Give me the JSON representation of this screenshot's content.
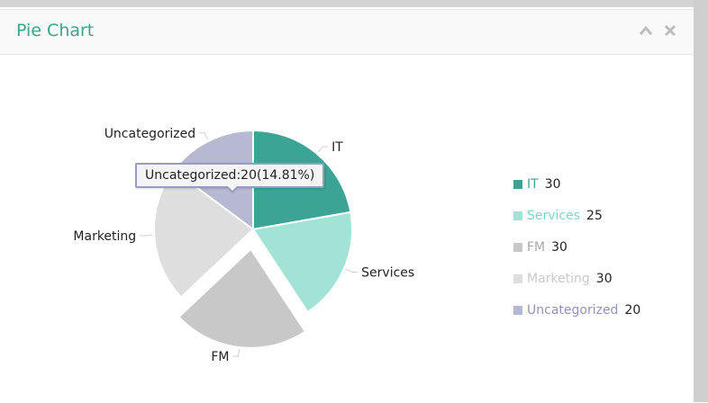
{
  "panel": {
    "title": "Pie Chart"
  },
  "header_icons": {
    "collapse": "chevron-up-icon",
    "close": "close-icon"
  },
  "tooltip": {
    "text": "Uncategorized:20(14.81%)"
  },
  "colors": {
    "IT": "#3ba494",
    "Services": "#a3e3d6",
    "FM": "#c8c8c8",
    "Marketing": "#dedede",
    "Uncategorized": "#b7b9d3"
  },
  "chart_data": {
    "type": "pie",
    "title": "Pie Chart",
    "labels": [
      "IT",
      "Services",
      "FM",
      "Marketing",
      "Uncategorized"
    ],
    "values": [
      30,
      25,
      30,
      30,
      20
    ],
    "colors": [
      "#3ba494",
      "#a3e3d6",
      "#c8c8c8",
      "#dedede",
      "#b7b9d3"
    ],
    "exploded": [
      "FM"
    ],
    "legend_position": "right"
  },
  "legend": [
    {
      "name": "IT",
      "value": "30"
    },
    {
      "name": "Services",
      "value": "25"
    },
    {
      "name": "FM",
      "value": "30"
    },
    {
      "name": "Marketing",
      "value": "30"
    },
    {
      "name": "Uncategorized",
      "value": "20"
    }
  ]
}
